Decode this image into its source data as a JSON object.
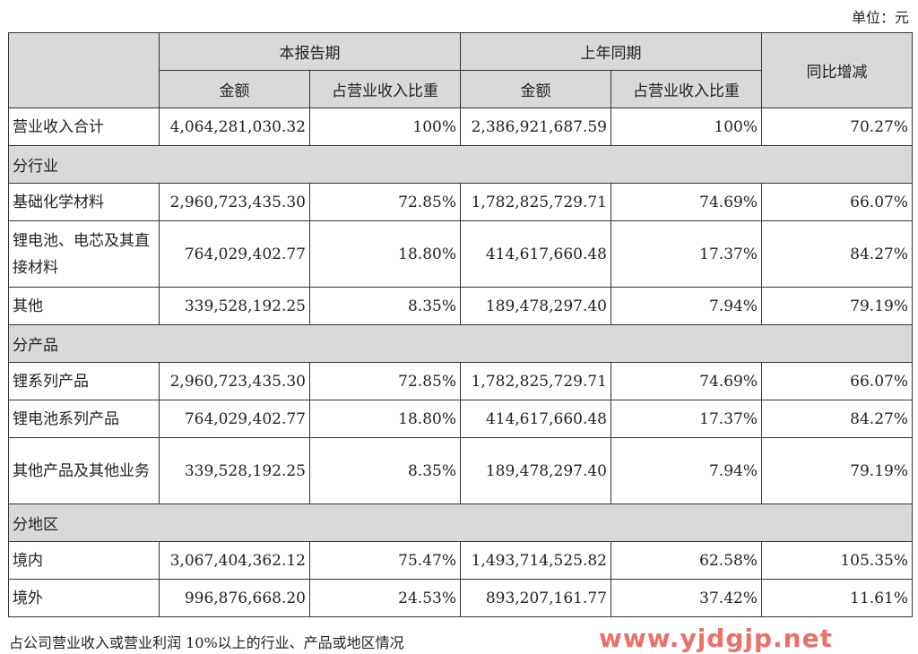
{
  "unit_label": "单位：元",
  "header": {
    "col_group_current": "本报告期",
    "col_group_prior": "上年同期",
    "col_yoy": "同比增减",
    "amount": "金额",
    "share": "占营业收入比重"
  },
  "total": {
    "label": "营业收入合计",
    "cur_amount": "4,064,281,030.32",
    "cur_share": "100%",
    "prev_amount": "2,386,921,687.59",
    "prev_share": "100%",
    "yoy": "70.27%"
  },
  "sections": [
    {
      "title": "分行业",
      "rows": [
        {
          "label": "基础化学材料",
          "cur_amount": "2,960,723,435.30",
          "cur_share": "72.85%",
          "prev_amount": "1,782,825,729.71",
          "prev_share": "74.69%",
          "yoy": "66.07%"
        },
        {
          "label": "锂电池、电芯及其直接材料",
          "cur_amount": "764,029,402.77",
          "cur_share": "18.80%",
          "prev_amount": "414,617,660.48",
          "prev_share": "17.37%",
          "yoy": "84.27%"
        },
        {
          "label": "其他",
          "cur_amount": "339,528,192.25",
          "cur_share": "8.35%",
          "prev_amount": "189,478,297.40",
          "prev_share": "7.94%",
          "yoy": "79.19%"
        }
      ]
    },
    {
      "title": "分产品",
      "rows": [
        {
          "label": "锂系列产品",
          "cur_amount": "2,960,723,435.30",
          "cur_share": "72.85%",
          "prev_amount": "1,782,825,729.71",
          "prev_share": "74.69%",
          "yoy": "66.07%"
        },
        {
          "label": "锂电池系列产品",
          "cur_amount": "764,029,402.77",
          "cur_share": "18.80%",
          "prev_amount": "414,617,660.48",
          "prev_share": "17.37%",
          "yoy": "84.27%"
        },
        {
          "label": "其他产品及其他业务",
          "cur_amount": "339,528,192.25",
          "cur_share": "8.35%",
          "prev_amount": "189,478,297.40",
          "prev_share": "7.94%",
          "yoy": "79.19%"
        }
      ]
    },
    {
      "title": "分地区",
      "rows": [
        {
          "label": "境内",
          "cur_amount": "3,067,404,362.12",
          "cur_share": "75.47%",
          "prev_amount": "1,493,714,525.82",
          "prev_share": "62.58%",
          "yoy": "105.35%"
        },
        {
          "label": "境外",
          "cur_amount": "996,876,668.20",
          "cur_share": "24.53%",
          "prev_amount": "893,207,161.77",
          "prev_share": "37.42%",
          "yoy": "11.61%"
        }
      ]
    }
  ],
  "footnote": "占公司营业收入或营业利润 10%以上的行业、产品或地区情况",
  "watermark": "www.yjdgjp.net"
}
